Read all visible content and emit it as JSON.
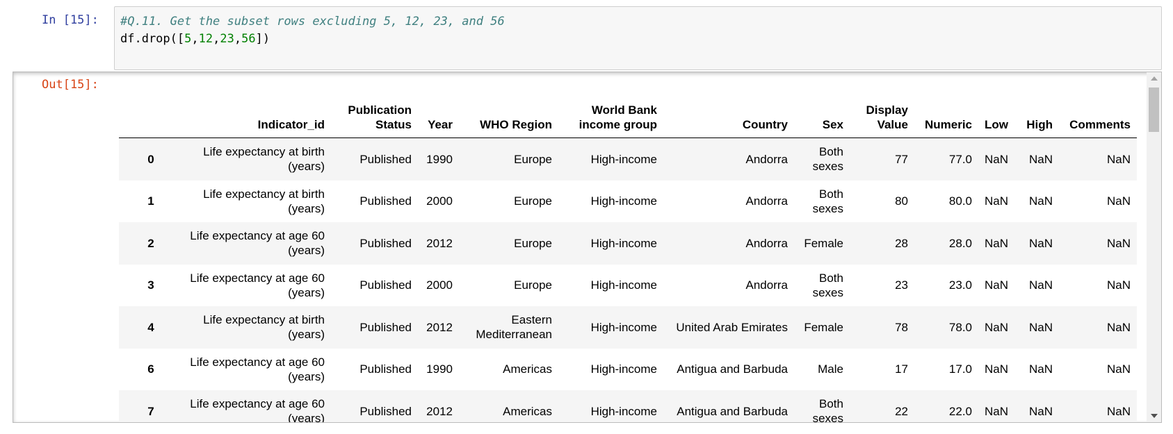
{
  "input": {
    "prompt": "In [15]:",
    "comment": "#Q.11. Get the subset rows excluding 5, 12, 23, and 56",
    "code": [
      "df.drop([",
      "5",
      ",",
      "12",
      ",",
      "23",
      ",",
      "56",
      "])"
    ]
  },
  "output": {
    "prompt": "Out[15]:",
    "table": {
      "columns": [
        "",
        "Indicator_id",
        "Publication Status",
        "Year",
        "WHO Region",
        "World Bank income group",
        "Country",
        "Sex",
        "Display Value",
        "Numeric",
        "Low",
        "High",
        "Comments"
      ],
      "rows": [
        [
          "0",
          "Life expectancy at birth (years)",
          "Published",
          "1990",
          "Europe",
          "High-income",
          "Andorra",
          "Both sexes",
          "77",
          "77.0",
          "NaN",
          "NaN",
          "NaN"
        ],
        [
          "1",
          "Life expectancy at birth (years)",
          "Published",
          "2000",
          "Europe",
          "High-income",
          "Andorra",
          "Both sexes",
          "80",
          "80.0",
          "NaN",
          "NaN",
          "NaN"
        ],
        [
          "2",
          "Life expectancy at age 60 (years)",
          "Published",
          "2012",
          "Europe",
          "High-income",
          "Andorra",
          "Female",
          "28",
          "28.0",
          "NaN",
          "NaN",
          "NaN"
        ],
        [
          "3",
          "Life expectancy at age 60 (years)",
          "Published",
          "2000",
          "Europe",
          "High-income",
          "Andorra",
          "Both sexes",
          "23",
          "23.0",
          "NaN",
          "NaN",
          "NaN"
        ],
        [
          "4",
          "Life expectancy at birth (years)",
          "Published",
          "2012",
          "Eastern Mediterranean",
          "High-income",
          "United Arab Emirates",
          "Female",
          "78",
          "78.0",
          "NaN",
          "NaN",
          "NaN"
        ],
        [
          "6",
          "Life expectancy at age 60 (years)",
          "Published",
          "1990",
          "Americas",
          "High-income",
          "Antigua and Barbuda",
          "Male",
          "17",
          "17.0",
          "NaN",
          "NaN",
          "NaN"
        ],
        [
          "7",
          "Life expectancy at age 60 (years)",
          "Published",
          "2012",
          "Americas",
          "High-income",
          "Antigua and Barbuda",
          "Both sexes",
          "22",
          "22.0",
          "NaN",
          "NaN",
          "NaN"
        ]
      ]
    }
  }
}
